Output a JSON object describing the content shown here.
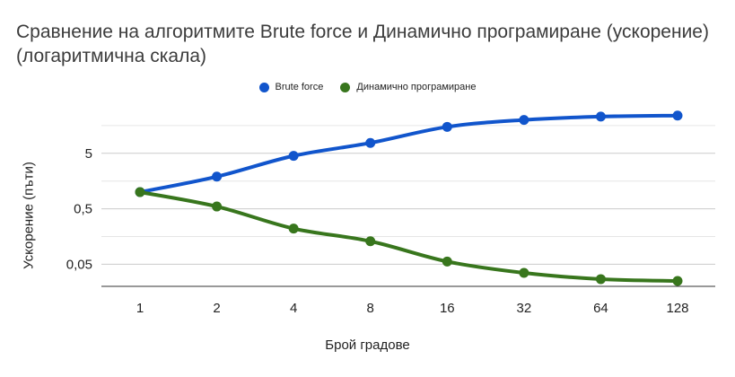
{
  "chart_data": {
    "type": "line",
    "title": "Сравнение на алгоритмите Brute force и Динамично програмиране (ускорение) (логаритмична скала)",
    "xlabel": "Брой градове",
    "ylabel": "Ускорение (пъти)",
    "categories": [
      "1",
      "2",
      "4",
      "8",
      "16",
      "32",
      "64",
      "128"
    ],
    "y_scale": "log",
    "y_ticks": [
      0.05,
      0.5,
      5
    ],
    "y_tick_labels": [
      "0,05",
      "0,5",
      "5"
    ],
    "ylim": [
      0.02,
      40
    ],
    "grid": true,
    "legend_position": "top",
    "series": [
      {
        "name": "Brute force",
        "color": "#1155cc",
        "values": [
          1.0,
          1.9,
          4.5,
          7.7,
          15,
          20,
          23,
          24
        ]
      },
      {
        "name": "Динамично програмиране",
        "color": "#38761d",
        "values": [
          1.0,
          0.55,
          0.22,
          0.13,
          0.056,
          0.035,
          0.027,
          0.025
        ]
      }
    ]
  }
}
